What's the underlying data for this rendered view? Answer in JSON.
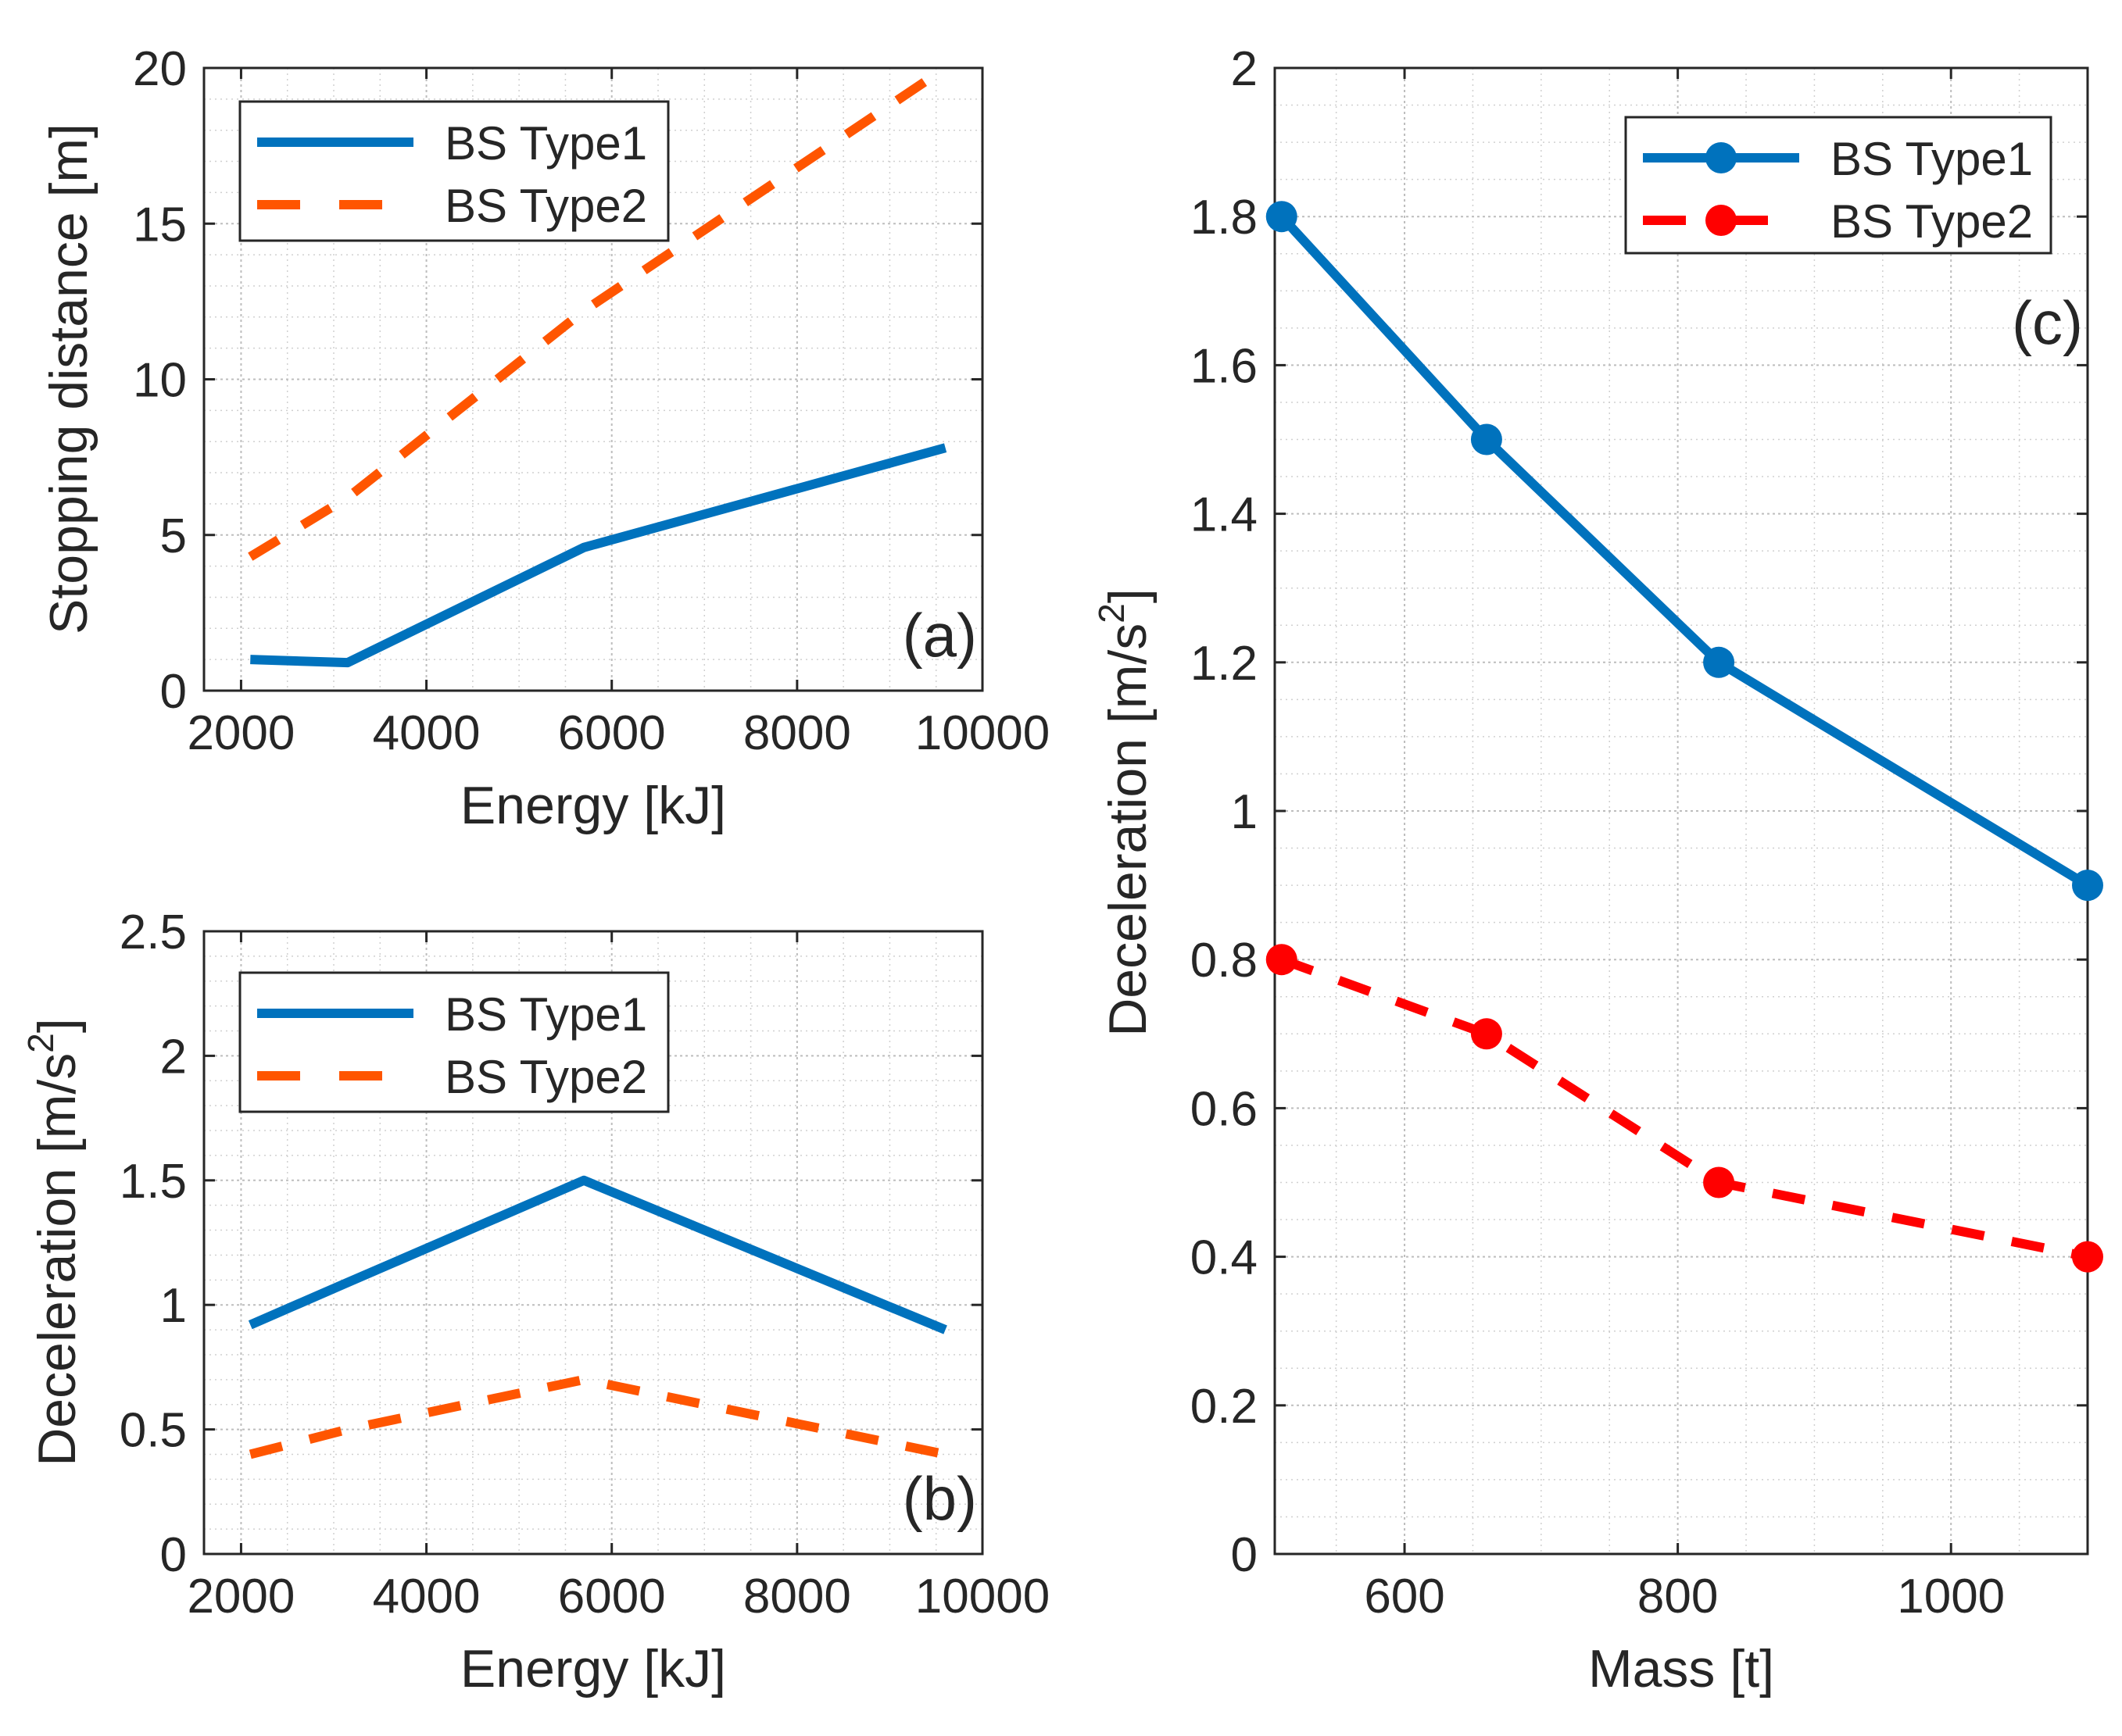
{
  "chart_data": [
    {
      "panel_label": "(a)",
      "type": "line",
      "xlabel": "Energy [kJ]",
      "ylabel": "Stopping distance [m]",
      "xlim": [
        1600,
        10000
      ],
      "ylim": [
        0,
        20
      ],
      "xticks": [
        2000,
        4000,
        6000,
        8000,
        10000
      ],
      "yticks": [
        0,
        5,
        10,
        15,
        20
      ],
      "grid": true,
      "legend_position": "top-left",
      "series": [
        {
          "name": "BS Type1",
          "color": "#0072BD",
          "style": "solid",
          "markers": false,
          "x": [
            2100,
            3150,
            5700,
            9600
          ],
          "y": [
            1.0,
            0.9,
            4.6,
            7.8
          ]
        },
        {
          "name": "BS Type2",
          "color": "#FF5500",
          "style": "dashed",
          "markers": false,
          "x": [
            2100,
            3150,
            5700,
            9600
          ],
          "y": [
            4.3,
            6.2,
            12.2,
            20.0
          ]
        }
      ]
    },
    {
      "panel_label": "(b)",
      "type": "line",
      "xlabel": "Energy [kJ]",
      "ylabel": "Deceleration [m/s2]",
      "xlim": [
        1600,
        10000
      ],
      "ylim": [
        0,
        2.5
      ],
      "xticks": [
        2000,
        4000,
        6000,
        8000,
        10000
      ],
      "yticks": [
        0,
        0.5,
        1,
        1.5,
        2,
        2.5
      ],
      "grid": true,
      "legend_position": "top-left",
      "series": [
        {
          "name": "BS Type1",
          "color": "#0072BD",
          "style": "solid",
          "markers": false,
          "x": [
            2100,
            3150,
            5700,
            9600
          ],
          "y": [
            0.92,
            1.09,
            1.5,
            0.9
          ]
        },
        {
          "name": "BS Type2",
          "color": "#FF5500",
          "style": "dashed",
          "markers": false,
          "x": [
            2100,
            3150,
            5700,
            9600
          ],
          "y": [
            0.4,
            0.5,
            0.7,
            0.4
          ]
        }
      ]
    },
    {
      "panel_label": "(c)",
      "type": "line",
      "xlabel": "Mass [t]",
      "ylabel": "Deceleration [m/s2]",
      "xlim": [
        505,
        1100
      ],
      "ylim": [
        0,
        2
      ],
      "xticks": [
        600,
        800,
        1000
      ],
      "yticks": [
        0,
        0.2,
        0.4,
        0.6,
        0.8,
        1,
        1.2,
        1.4,
        1.6,
        1.8,
        2
      ],
      "grid": true,
      "legend_position": "top-right",
      "series": [
        {
          "name": "BS Type1",
          "color": "#0072BD",
          "style": "solid",
          "markers": true,
          "x": [
            510,
            660,
            830,
            1100
          ],
          "y": [
            1.8,
            1.5,
            1.2,
            0.9
          ]
        },
        {
          "name": "BS Type2",
          "color": "#FF0000",
          "style": "dashed",
          "markers": true,
          "x": [
            510,
            660,
            830,
            1100
          ],
          "y": [
            0.8,
            0.7,
            0.5,
            0.4
          ]
        }
      ]
    }
  ]
}
